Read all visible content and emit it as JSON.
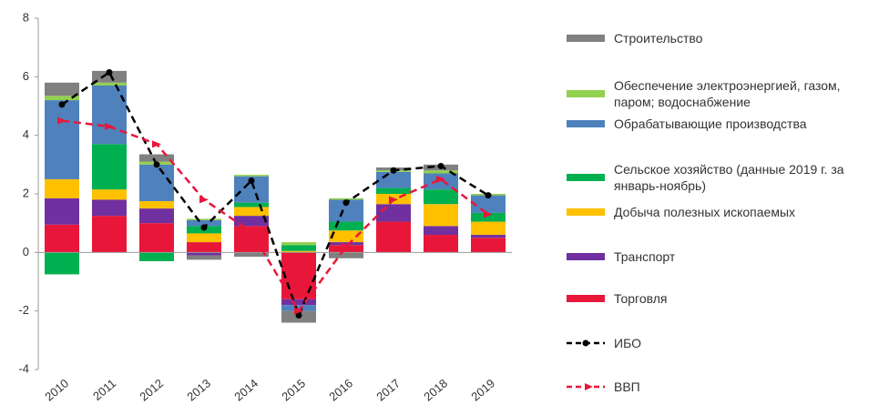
{
  "chart_data": {
    "type": "stacked_bar_line",
    "categories": [
      "2010",
      "2011",
      "2012",
      "2013",
      "2014",
      "2015",
      "2016",
      "2017",
      "2018",
      "2019"
    ],
    "ylim": [
      -4,
      8
    ],
    "yticks": [
      -4,
      -2,
      0,
      2,
      4,
      6,
      8
    ],
    "series": [
      {
        "name": "Строительство",
        "color": "#808080",
        "values": [
          0.45,
          0.4,
          0.25,
          -0.15,
          -0.15,
          -0.4,
          -0.2,
          0.1,
          0.2,
          0
        ]
      },
      {
        "name": "Обеспечение электроэнергией, газом, паром; водоснабжение",
        "color": "#92d050",
        "values": [
          0.15,
          0.1,
          0.1,
          0.05,
          0.05,
          0.1,
          0.05,
          0.05,
          0.1,
          0.05
        ]
      },
      {
        "name": "Обрабатывающие производства",
        "color": "#4f81bd",
        "values": [
          2.7,
          2.0,
          1.25,
          0.2,
          0.9,
          -0.2,
          0.75,
          0.55,
          0.55,
          0.6
        ]
      },
      {
        "name": "Сельское хозяйство (данные 2019 г. за январь-ноябрь)",
        "color": "#00b050",
        "values": [
          -0.75,
          1.55,
          -0.3,
          0.25,
          0.15,
          0.2,
          0.3,
          0.2,
          0.5,
          0.3
        ]
      },
      {
        "name": "Добыча полезных ископаемых",
        "color": "#ffc000",
        "values": [
          0.65,
          0.35,
          0.25,
          0.3,
          0.3,
          0.05,
          0.4,
          0.35,
          0.75,
          0.45
        ]
      },
      {
        "name": "Транспорт",
        "color": "#7030a0",
        "values": [
          0.9,
          0.55,
          0.5,
          -0.1,
          0.35,
          -0.2,
          0.1,
          0.6,
          0.3,
          0.1
        ]
      },
      {
        "name": "Торговля",
        "color": "#e8173a",
        "values": [
          0.95,
          1.25,
          1.0,
          0.35,
          0.9,
          -1.6,
          0.25,
          1.05,
          0.6,
          0.5
        ]
      },
      {
        "name": "ИБО",
        "type": "line",
        "color": "#000000",
        "marker": "circle",
        "values": [
          5.05,
          6.15,
          3.0,
          0.85,
          2.45,
          -2.15,
          1.7,
          2.8,
          2.95,
          1.95
        ]
      },
      {
        "name": "ВВП",
        "type": "line",
        "color": "#e8173a",
        "marker": "triangle",
        "values": [
          4.5,
          4.3,
          3.7,
          1.8,
          0.7,
          -2.0,
          0.2,
          1.8,
          2.5,
          1.3
        ]
      }
    ]
  }
}
